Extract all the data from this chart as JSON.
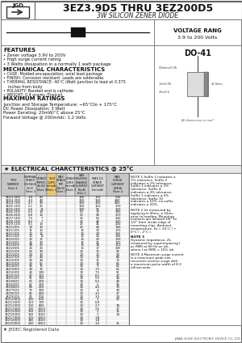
{
  "title_main": "3EZ3.9D5 THRU 3EZ200D5",
  "title_sub": "3W SILICON ZENER DIODE",
  "voltage_range_line1": "VOLTAGE RANG",
  "voltage_range_line2": "3.9 to 200 Volts",
  "package": "DO-41",
  "features_title": "FEATURES",
  "features": [
    "• Zener voltage 3.9V to 200V",
    "• High surge current rating",
    "• 3 Watts dissipation in a normally 1 watt package"
  ],
  "mech_title": "MECHANICAL CHARACTERISTICS",
  "mech": [
    "• CASE: Molded encapsulation, axial lead package",
    "• FINISH: Corrosion resistant. Leads are solderable.",
    "• THERMAL RESISTANCE: 40°C /Watt junction to lead at 0.375",
    "    inches from body",
    "• POLARITY: Banded end is cathode",
    "• WEIGHT: 0.4 grams (Typical)"
  ],
  "max_title": "MAXIMUM RATINGS",
  "max_ratings": [
    "Junction and Storage Temperature: −65°Cto + 175°C",
    "DC Power Dissipation: 3 Watt",
    "Power Derating: 20mW/°C above 25°C",
    "Forward Voltage @ 200mAdc: 1.2 Volts"
  ],
  "elec_title": "★ ELECTRICAL CHARCTTERISTICS @ 25°C",
  "note1": "NOTE 1 Suffix 1 indicates a 1% tolerance. Suffix 2 indicates a 2% tolerance. Suffix 3 indicates a 3% tolerance. Suffix 4 indicates a 4% tolerance. Suffix 5 indicates a 5% tolerance. Suffix 10 indicates a 10%. no suffix indicates a 20%.",
  "note2": "NOTE 2 Vz measured by applying Iz 40ms, a 10ms prior to reading. Mounting contacts are located 3/8\" to 1/2\" from inside edge of mounting clips. Ambient temperature, Ta = 25°C ( + 0°C / - 2°C ).",
  "note3": "NOTE 3\nDynamic impedance, Zt, measured by superimposing I ac RMS at 60 Hz on Izk, where I ac RMS = 10% Izk.",
  "note4": "NOTE 4 Maximum surge current is a maximum peak non - recurrent reverse surge with a maximum pulse width of 8.3 milliseconds.",
  "jedec": "★ JEDEC Registered Data",
  "company": "JINAN GUDE ELECTRONIC DEVICE CO.,LTD",
  "table_col_headers": [
    "TYPE\nNUMBER\nNote 1",
    "NOMINAL\nZENER\nVOLTAGE\nVz(V)\nNote 2",
    "ZENER\nIMPED-\nANCE\nZzt(Ω)\nNote 3",
    "TEST\nCURRENT\nIzt(mA)\nNote 2",
    "MAX\nZENER\nIMPED.\nZzk(Ω)\nNote 3",
    "ZENER\nCURRENT\nIzk(mA)\nNote 3",
    "MAX\nREVERSE\nLEAKAGE\nCURRENT\nIR(μA)\nNote 2",
    "MAX DC\nZENER\nCURRENT\nIzm(mA)",
    "MAX\nSURGE\nCURRENT\nISM(A)\nNote 4"
  ],
  "table_data": [
    [
      "3EZ3.9D5",
      "3.9",
      "60",
      "",
      "",
      "",
      "100",
      "170",
      "500"
    ],
    [
      "3EZ4.3D5",
      "4.3",
      "40",
      "",
      "",
      "",
      "100",
      "150",
      "440"
    ],
    [
      "3EZ4.7D5",
      "4.7",
      "30",
      "",
      "",
      "",
      "100",
      "120",
      "400"
    ],
    [
      "3EZ5.1D5",
      "5.1",
      "25",
      "",
      "",
      "",
      "100",
      "110",
      "370"
    ],
    [
      "3EZ5.6D5",
      "5.6",
      "15",
      "",
      "",
      "",
      "100",
      "95",
      "320"
    ],
    [
      "3EZ6.2D5",
      "6.2",
      "10",
      "",
      "",
      "",
      "50",
      "72",
      "290"
    ],
    [
      "3EZ6.8D5",
      "6.8",
      "10",
      "",
      "",
      "",
      "50",
      "58",
      "270"
    ],
    [
      "3EZ7.5D5",
      "7.5",
      "7",
      "",
      "",
      "",
      "25",
      "54",
      "240"
    ],
    [
      "3EZ8.2D5",
      "8.2",
      "7",
      "",
      "",
      "",
      "25",
      "46",
      "220"
    ],
    [
      "3EZ9.1D5",
      "9.1",
      "10",
      "",
      "",
      "",
      "25",
      "41",
      "200"
    ],
    [
      "3EZ10D5",
      "10",
      "10",
      "",
      "",
      "",
      "25",
      "40",
      "190"
    ],
    [
      "3EZ11D5",
      "11",
      "12",
      "",
      "",
      "",
      "15",
      "33",
      "170"
    ],
    [
      "3EZ12D5",
      "12",
      "12",
      "",
      "",
      "",
      "15",
      "29",
      "155"
    ],
    [
      "3EZ13D5",
      "13",
      "15",
      "",
      "",
      "",
      "15",
      "26",
      "145"
    ],
    [
      "3EZ15D5",
      "15",
      "17",
      "",
      "",
      "",
      "15",
      "23",
      "130"
    ],
    [
      "3EZ16D5",
      "16",
      "20",
      "",
      "",
      "",
      "15",
      "21",
      "120"
    ],
    [
      "3EZ18D5",
      "18",
      "23",
      "",
      "",
      "",
      "15",
      "18",
      "110"
    ],
    [
      "3EZ20D5",
      "20",
      "25",
      "",
      "",
      "",
      "15",
      "17",
      "105"
    ],
    [
      "3EZ22D5",
      "22",
      "30",
      "",
      "",
      "",
      "10",
      "15",
      "95"
    ],
    [
      "3EZ24D5",
      "24",
      "33",
      "",
      "",
      "",
      "10",
      "13",
      "90"
    ],
    [
      "3EZ27D5",
      "27",
      "40",
      "",
      "",
      "",
      "10",
      "12",
      "80"
    ],
    [
      "3EZ30D5",
      "30",
      "44",
      "",
      "",
      "",
      "10",
      "11",
      "72"
    ],
    [
      "3EZ33D5",
      "33",
      "55",
      "",
      "",
      "",
      "10",
      "10",
      "65"
    ],
    [
      "3EZ36D5",
      "36",
      "75",
      "",
      "",
      "",
      "10",
      "9",
      "62"
    ],
    [
      "3EZ39D5",
      "39",
      "75",
      "",
      "",
      "",
      "10",
      "7.5",
      "56"
    ],
    [
      "3EZ43D5",
      "43",
      "100",
      "",
      "",
      "",
      "10",
      "7.5",
      "51"
    ],
    [
      "3EZ47D5",
      "47",
      "125",
      "",
      "",
      "",
      "10",
      "6.5",
      "47"
    ],
    [
      "3EZ51D5",
      "51",
      "150",
      "",
      "",
      "",
      "10",
      "5.5",
      "44"
    ],
    [
      "3EZ56D5",
      "56",
      "200",
      "",
      "",
      "",
      "10",
      "5.5",
      "40"
    ],
    [
      "3EZ62D5",
      "62",
      "250",
      "",
      "",
      "",
      "10",
      "5",
      "36"
    ],
    [
      "3EZ68D5",
      "68",
      "250",
      "",
      "",
      "",
      "10",
      "4.5",
      "33"
    ],
    [
      "3EZ75D5",
      "75",
      "300",
      "",
      "",
      "",
      "10",
      "4",
      "30"
    ],
    [
      "3EZ82D5",
      "82",
      "400",
      "",
      "",
      "",
      "10",
      "3.5",
      "27"
    ],
    [
      "3EZ91D5",
      "91",
      "500",
      "",
      "",
      "",
      "10",
      "3.5",
      "24"
    ],
    [
      "3EZ100D5",
      "100",
      "600",
      "",
      "",
      "",
      "10",
      "3",
      "22"
    ],
    [
      "3EZ110D5",
      "110",
      "700",
      "",
      "",
      "",
      "10",
      "6.8",
      ""
    ],
    [
      "3EZ120D5",
      "120",
      "800",
      "",
      "",
      "",
      "10",
      "2.7",
      "18"
    ],
    [
      "3EZ130D5",
      "130",
      "1000",
      "",
      "",
      "",
      "10",
      "2.5",
      "17"
    ],
    [
      "3EZ150D5",
      "150",
      "1200",
      "",
      "",
      "",
      "10",
      "2",
      "15"
    ],
    [
      "3EZ160D5",
      "160",
      "1500",
      "",
      "",
      "",
      "10",
      "2",
      "14"
    ],
    [
      "3EZ170D5",
      "170",
      "2000",
      "",
      "",
      "",
      "10",
      "1.8",
      ""
    ],
    [
      "3EZ180D5",
      "180",
      "2500",
      "",
      "",
      "",
      "10",
      "1.8",
      ""
    ],
    [
      "3EZ200D5",
      "200",
      "3000",
      "",
      "",
      "",
      "10",
      "1.5",
      "11"
    ]
  ],
  "bg_color": "#ffffff",
  "outer_border": "#888888",
  "inner_border": "#aaaaaa",
  "header_gray": "#c8c8c8",
  "col_highlight": "#e8c870"
}
